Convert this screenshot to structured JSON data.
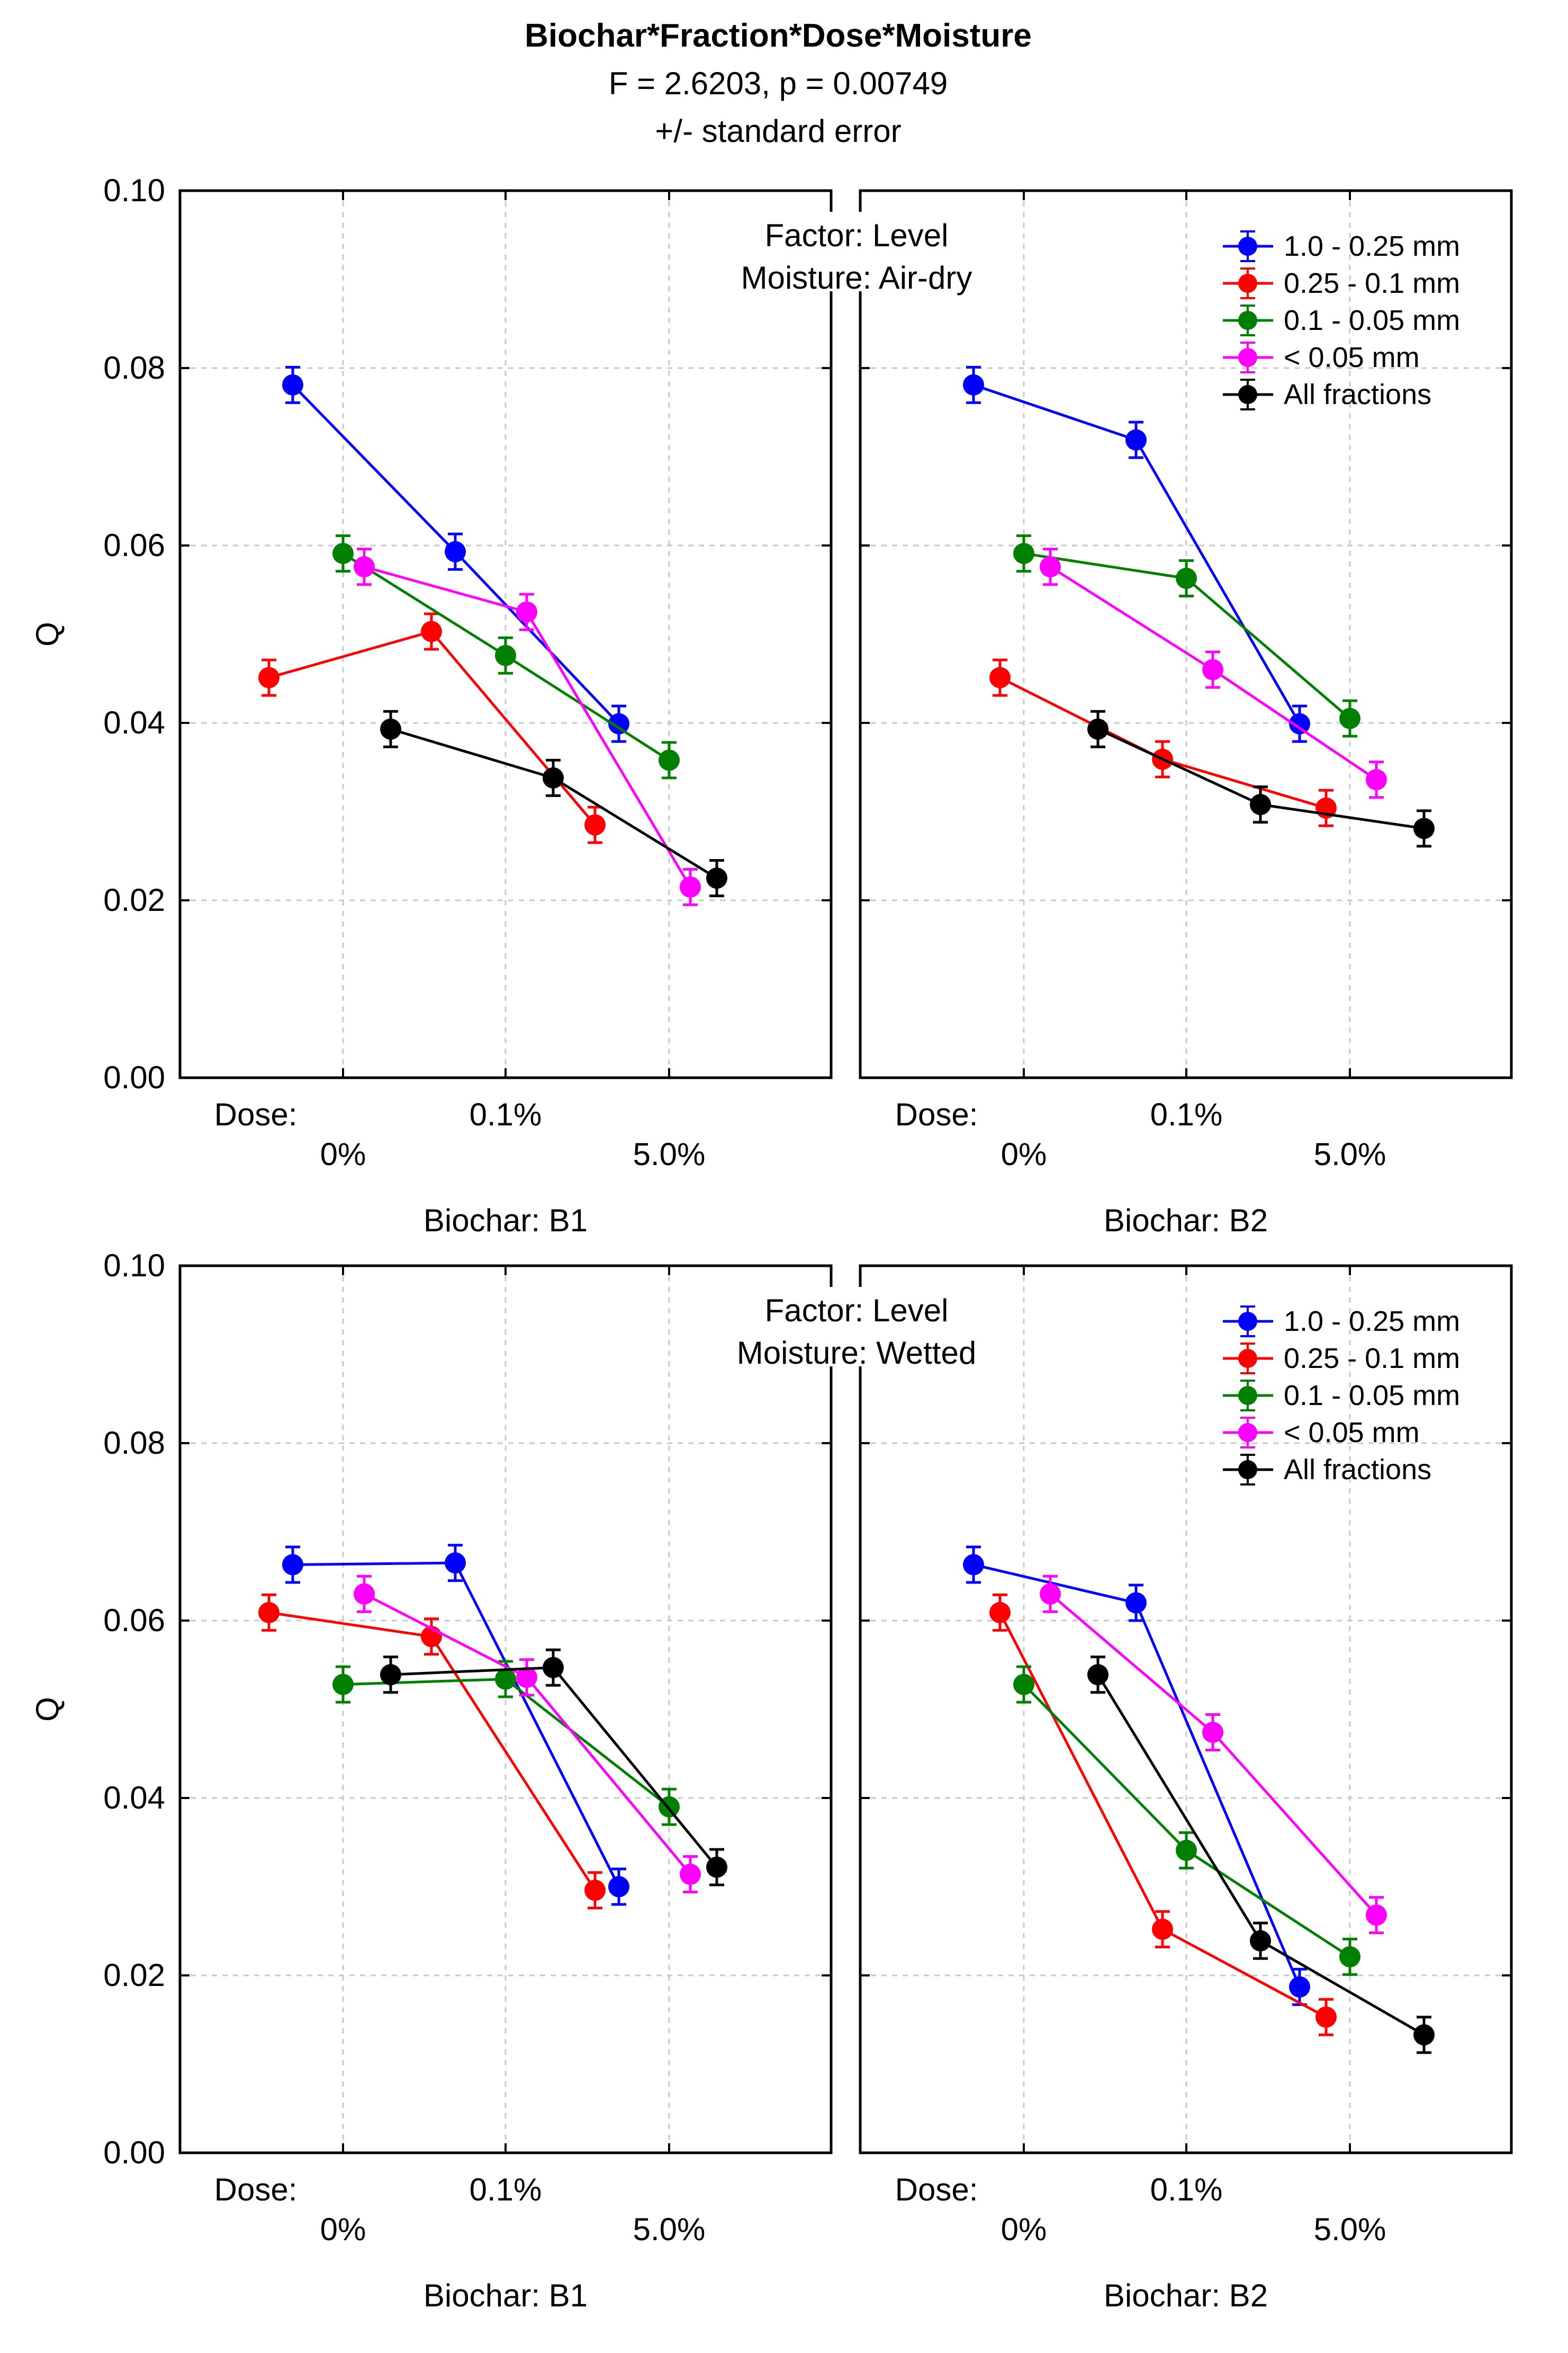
{
  "figure": {
    "title": "Biochar*Fraction*Dose*Moisture",
    "subtitle1": "F = 2.6203, p = 0.00749",
    "subtitle2": "+/- standard error"
  },
  "chart_data": {
    "type": "line",
    "ylabel": "Q",
    "ylim": [
      0,
      0.1
    ],
    "yticks": [
      "0.00",
      "0.02",
      "0.04",
      "0.06",
      "0.08",
      "0.10"
    ],
    "dose_label": "Dose:",
    "dose_levels": [
      "0%",
      "0.1%",
      "5.0%"
    ],
    "grid": true,
    "series_names": [
      "1.0 - 0.25 mm",
      "0.25 - 0.1 mm",
      "0.1 - 0.05 mm",
      "< 0.05 mm",
      "All fractions"
    ],
    "series_colors": [
      "#0000ff",
      "#ff0000",
      "#008000",
      "#ff00ff",
      "#000000"
    ],
    "rows": [
      {
        "factor_label": "Factor: Level",
        "moisture_label": "Moisture: Air-dry",
        "panels": [
          {
            "biochar_label": "Biochar: B1",
            "series": [
              {
                "name": "1.0 - 0.25 mm",
                "values": [
                  0.0781,
                  0.0593,
                  0.0399
                ],
                "errors": [
                  0.002,
                  0.002,
                  0.002
                ]
              },
              {
                "name": "0.25 - 0.1 mm",
                "values": [
                  0.0451,
                  0.0503,
                  0.0285
                ],
                "errors": [
                  0.002,
                  0.002,
                  0.002
                ]
              },
              {
                "name": "0.1 - 0.05 mm",
                "values": [
                  0.0591,
                  0.0476,
                  0.0358
                ],
                "errors": [
                  0.002,
                  0.002,
                  0.002
                ]
              },
              {
                "name": "< 0.05 mm",
                "values": [
                  0.0576,
                  0.0525,
                  0.0215
                ],
                "errors": [
                  0.002,
                  0.002,
                  0.002
                ]
              },
              {
                "name": "All fractions",
                "values": [
                  0.0393,
                  0.0338,
                  0.0225
                ],
                "errors": [
                  0.002,
                  0.002,
                  0.002
                ]
              }
            ]
          },
          {
            "biochar_label": "Biochar: B2",
            "series": [
              {
                "name": "1.0 - 0.25 mm",
                "values": [
                  0.0781,
                  0.0719,
                  0.0399
                ],
                "errors": [
                  0.002,
                  0.002,
                  0.002
                ]
              },
              {
                "name": "0.25 - 0.1 mm",
                "values": [
                  0.0451,
                  0.0359,
                  0.0304
                ],
                "errors": [
                  0.002,
                  0.002,
                  0.002
                ]
              },
              {
                "name": "0.1 - 0.05 mm",
                "values": [
                  0.0591,
                  0.0563,
                  0.0405
                ],
                "errors": [
                  0.002,
                  0.002,
                  0.002
                ]
              },
              {
                "name": "< 0.05 mm",
                "values": [
                  0.0576,
                  0.046,
                  0.0336
                ],
                "errors": [
                  0.002,
                  0.002,
                  0.002
                ]
              },
              {
                "name": "All fractions",
                "values": [
                  0.0393,
                  0.0308,
                  0.0281
                ],
                "errors": [
                  0.002,
                  0.002,
                  0.002
                ]
              }
            ]
          }
        ]
      },
      {
        "factor_label": "Factor: Level",
        "moisture_label": "Moisture: Wetted",
        "panels": [
          {
            "biochar_label": "Biochar: B1",
            "series": [
              {
                "name": "1.0 - 0.25 mm",
                "values": [
                  0.0663,
                  0.0665,
                  0.03
                ],
                "errors": [
                  0.002,
                  0.002,
                  0.002
                ]
              },
              {
                "name": "0.25 - 0.1 mm",
                "values": [
                  0.0609,
                  0.0582,
                  0.0296
                ],
                "errors": [
                  0.002,
                  0.002,
                  0.002
                ]
              },
              {
                "name": "0.1 - 0.05 mm",
                "values": [
                  0.0528,
                  0.0534,
                  0.039
                ],
                "errors": [
                  0.002,
                  0.002,
                  0.002
                ]
              },
              {
                "name": "< 0.05 mm",
                "values": [
                  0.063,
                  0.0536,
                  0.0314
                ],
                "errors": [
                  0.002,
                  0.002,
                  0.002
                ]
              },
              {
                "name": "All fractions",
                "values": [
                  0.0539,
                  0.0547,
                  0.0322
                ],
                "errors": [
                  0.002,
                  0.002,
                  0.002
                ]
              }
            ]
          },
          {
            "biochar_label": "Biochar: B2",
            "series": [
              {
                "name": "1.0 - 0.25 mm",
                "values": [
                  0.0663,
                  0.062,
                  0.0187
                ],
                "errors": [
                  0.002,
                  0.002,
                  0.002
                ]
              },
              {
                "name": "0.25 - 0.1 mm",
                "values": [
                  0.0609,
                  0.0252,
                  0.0153
                ],
                "errors": [
                  0.002,
                  0.002,
                  0.002
                ]
              },
              {
                "name": "0.1 - 0.05 mm",
                "values": [
                  0.0528,
                  0.0341,
                  0.0221
                ],
                "errors": [
                  0.002,
                  0.002,
                  0.002
                ]
              },
              {
                "name": "< 0.05 mm",
                "values": [
                  0.063,
                  0.0474,
                  0.0268
                ],
                "errors": [
                  0.002,
                  0.002,
                  0.002
                ]
              },
              {
                "name": "All fractions",
                "values": [
                  0.0539,
                  0.0239,
                  0.0133
                ],
                "errors": [
                  0.002,
                  0.002,
                  0.002
                ]
              }
            ]
          }
        ]
      }
    ]
  }
}
